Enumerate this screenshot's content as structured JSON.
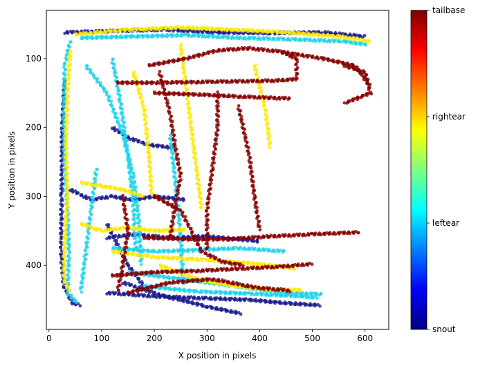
{
  "chart_data": {
    "type": "scatter",
    "xlabel": "X position in pixels",
    "ylabel": "Y position in pixels",
    "xlim": [
      -5,
      645
    ],
    "ylim": [
      493,
      30
    ],
    "y_inverted": true,
    "grid": false,
    "xticks": [
      0,
      100,
      200,
      300,
      400,
      500,
      600
    ],
    "yticks": [
      100,
      200,
      300,
      400
    ],
    "colormap": "jet",
    "colorbar": {
      "ticks": [
        "snout",
        "leftear",
        "rightear",
        "tailbase"
      ],
      "colors": [
        "#00007f",
        "#0000ff",
        "#007fff",
        "#00ffff",
        "#7fff7f",
        "#ffff00",
        "#ff7f00",
        "#ff0000",
        "#7f0000"
      ]
    },
    "series": [
      {
        "name": "snout",
        "color": "#1a1a8c",
        "paths": [
          [
            [
              30,
              130
            ],
            [
              25,
              200
            ],
            [
              24,
              300
            ],
            [
              23,
              380
            ],
            [
              28,
              430
            ],
            [
              45,
              455
            ],
            [
              60,
              458
            ]
          ],
          [
            [
              30,
              62
            ],
            [
              120,
              60
            ],
            [
              220,
              58
            ],
            [
              320,
              62
            ],
            [
              420,
              63
            ],
            [
              520,
              62
            ],
            [
              600,
              68
            ]
          ],
          [
            [
              40,
              290
            ],
            [
              80,
              305
            ],
            [
              120,
              300
            ],
            [
              160,
              305
            ],
            [
              200,
              300
            ],
            [
              260,
              305
            ]
          ],
          [
            [
              110,
              360
            ],
            [
              160,
              355
            ],
            [
              230,
              360
            ],
            [
              300,
              358
            ],
            [
              400,
              365
            ]
          ],
          [
            [
              110,
              440
            ],
            [
              200,
              445
            ],
            [
              300,
              448
            ],
            [
              380,
              450
            ],
            [
              450,
              455
            ],
            [
              515,
              458
            ]
          ],
          [
            [
              140,
              425
            ],
            [
              180,
              435
            ],
            [
              220,
              445
            ],
            [
              260,
              452
            ],
            [
              300,
              460
            ],
            [
              365,
              470
            ]
          ],
          [
            [
              120,
              200
            ],
            [
              150,
              215
            ],
            [
              190,
              225
            ],
            [
              240,
              230
            ]
          ],
          [
            [
              110,
              340
            ],
            [
              150,
              400
            ],
            [
              180,
              430
            ]
          ]
        ]
      },
      {
        "name": "leftear",
        "color": "#1ed3ec",
        "paths": [
          [
            [
              40,
              75
            ],
            [
              30,
              110
            ],
            [
              28,
              180
            ],
            [
              30,
              260
            ],
            [
              35,
              320
            ],
            [
              38,
              380
            ],
            [
              35,
              440
            ],
            [
              55,
              455
            ]
          ],
          [
            [
              60,
              70
            ],
            [
              160,
              68
            ],
            [
              260,
              66
            ],
            [
              360,
              70
            ],
            [
              460,
              72
            ],
            [
              560,
              75
            ],
            [
              605,
              80
            ]
          ],
          [
            [
              70,
              110
            ],
            [
              110,
              150
            ],
            [
              140,
              210
            ],
            [
              160,
              270
            ],
            [
              170,
              330
            ],
            [
              175,
              400
            ]
          ],
          [
            [
              120,
              100
            ],
            [
              135,
              160
            ],
            [
              150,
              240
            ],
            [
              160,
              310
            ],
            [
              165,
              380
            ]
          ],
          [
            [
              120,
              375
            ],
            [
              200,
              380
            ],
            [
              280,
              378
            ],
            [
              360,
              375
            ],
            [
              450,
              380
            ]
          ],
          [
            [
              150,
              410
            ],
            [
              250,
              420
            ],
            [
              350,
              430
            ],
            [
              450,
              440
            ],
            [
              520,
              442
            ]
          ],
          [
            [
              180,
              430
            ],
            [
              280,
              438
            ],
            [
              380,
              441
            ],
            [
              480,
              445
            ],
            [
              510,
              447
            ]
          ],
          [
            [
              90,
              260
            ],
            [
              80,
              320
            ],
            [
              70,
              380
            ],
            [
              60,
              440
            ]
          ],
          [
            [
              230,
              210
            ],
            [
              240,
              280
            ],
            [
              250,
              360
            ],
            [
              255,
              430
            ]
          ]
        ]
      },
      {
        "name": "rightear",
        "color": "#ffe800",
        "paths": [
          [
            [
              50,
              65
            ],
            [
              150,
              58
            ],
            [
              250,
              55
            ],
            [
              350,
              58
            ],
            [
              450,
              62
            ],
            [
              550,
              68
            ],
            [
              610,
              75
            ]
          ],
          [
            [
              40,
              90
            ],
            [
              35,
              150
            ],
            [
              32,
              220
            ],
            [
              35,
              300
            ],
            [
              30,
              360
            ],
            [
              28,
              420
            ],
            [
              40,
              440
            ]
          ],
          [
            [
              60,
              280
            ],
            [
              100,
              285
            ],
            [
              140,
              290
            ],
            [
              180,
              300
            ]
          ],
          [
            [
              60,
              340
            ],
            [
              100,
              350
            ],
            [
              150,
              345
            ],
            [
              200,
              350
            ],
            [
              260,
              348
            ]
          ],
          [
            [
              120,
              380
            ],
            [
              200,
              388
            ],
            [
              300,
              392
            ],
            [
              400,
              398
            ],
            [
              470,
              405
            ]
          ],
          [
            [
              210,
              400
            ],
            [
              280,
              420
            ],
            [
              350,
              430
            ],
            [
              420,
              435
            ],
            [
              480,
              436
            ]
          ],
          [
            [
              160,
              120
            ],
            [
              180,
              170
            ],
            [
              190,
              240
            ],
            [
              195,
              300
            ]
          ],
          [
            [
              250,
              80
            ],
            [
              260,
              140
            ],
            [
              270,
              200
            ],
            [
              280,
              260
            ],
            [
              290,
              320
            ]
          ],
          [
            [
              390,
              110
            ],
            [
              410,
              170
            ],
            [
              420,
              230
            ]
          ]
        ]
      },
      {
        "name": "tailbase",
        "color": "#860000",
        "paths": [
          [
            [
              130,
              135
            ],
            [
              200,
              135
            ],
            [
              280,
              134
            ],
            [
              360,
              133
            ],
            [
              430,
              132
            ],
            [
              470,
              130
            ],
            [
              470,
              100
            ],
            [
              440,
              90
            ]
          ],
          [
            [
              200,
              150
            ],
            [
              280,
              152
            ],
            [
              360,
              155
            ],
            [
              420,
              157
            ],
            [
              460,
              158
            ]
          ],
          [
            [
              190,
              110
            ],
            [
              260,
              100
            ],
            [
              320,
              88
            ],
            [
              380,
              85
            ],
            [
              440,
              90
            ],
            [
              520,
              100
            ],
            [
              580,
              110
            ],
            [
              610,
              140
            ]
          ],
          [
            [
              180,
              360
            ],
            [
              260,
              362
            ],
            [
              340,
              362
            ],
            [
              420,
              358
            ],
            [
              500,
              355
            ],
            [
              590,
              352
            ]
          ],
          [
            [
              120,
              415
            ],
            [
              200,
              410
            ],
            [
              280,
              408
            ],
            [
              360,
              405
            ],
            [
              440,
              402
            ],
            [
              500,
              398
            ]
          ],
          [
            [
              150,
              440
            ],
            [
              230,
              425
            ],
            [
              310,
              420
            ],
            [
              390,
              432
            ],
            [
              460,
              437
            ]
          ],
          [
            [
              140,
              300
            ],
            [
              150,
              350
            ],
            [
              140,
              400
            ],
            [
              130,
              440
            ]
          ],
          [
            [
              210,
              120
            ],
            [
              230,
              180
            ],
            [
              240,
              230
            ],
            [
              250,
              270
            ],
            [
              240,
              310
            ],
            [
              230,
              360
            ]
          ],
          [
            [
              320,
              150
            ],
            [
              320,
              200
            ],
            [
              310,
              260
            ],
            [
              300,
              320
            ],
            [
              300,
              380
            ]
          ],
          [
            [
              360,
              170
            ],
            [
              380,
              240
            ],
            [
              390,
              300
            ],
            [
              400,
              350
            ]
          ],
          [
            [
              200,
              300
            ],
            [
              250,
              320
            ],
            [
              270,
              350
            ],
            [
              290,
              380
            ],
            [
              330,
              395
            ],
            [
              370,
              400
            ]
          ],
          [
            [
              560,
              110
            ],
            [
              600,
              120
            ],
            [
              610,
              150
            ],
            [
              560,
              165
            ]
          ]
        ]
      }
    ]
  }
}
